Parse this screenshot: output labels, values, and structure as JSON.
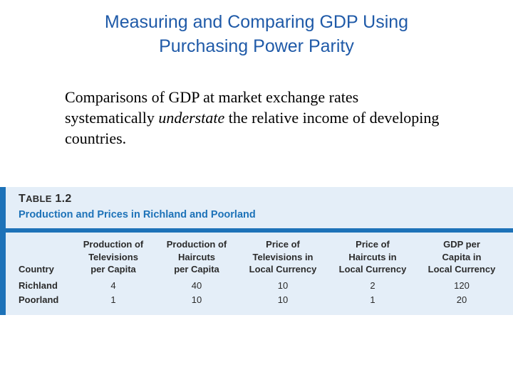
{
  "slide": {
    "title_line1": "Measuring and Comparing GDP Using",
    "title_line2": "Purchasing Power Parity",
    "body_line1": "Comparisons of GDP at market exchange rates",
    "body_line2_pre": "systematically ",
    "body_line2_em": "understate",
    "body_line2_post": " the relative income of developing",
    "body_line3": "countries."
  },
  "table": {
    "number_first": "T",
    "number_rest": "ABLE",
    "number_value": "1.2",
    "caption": "Production and Prices in Richland and Poorland",
    "headers": [
      {
        "l1": "",
        "l2": "",
        "l3": "Country"
      },
      {
        "l1": "Production of",
        "l2": "Televisions",
        "l3": "per Capita"
      },
      {
        "l1": "Production of",
        "l2": "Haircuts",
        "l3": "per Capita"
      },
      {
        "l1": "Price of",
        "l2": "Televisions in",
        "l3": "Local Currency"
      },
      {
        "l1": "Price of",
        "l2": "Haircuts in",
        "l3": "Local Currency"
      },
      {
        "l1": "GDP per",
        "l2": "Capita in",
        "l3": "Local Currency"
      }
    ],
    "rows": [
      {
        "country": "Richland",
        "values": [
          "4",
          "40",
          "10",
          "2",
          "120"
        ]
      },
      {
        "country": "Poorland",
        "values": [
          "1",
          "10",
          "10",
          "1",
          "20"
        ]
      }
    ]
  }
}
